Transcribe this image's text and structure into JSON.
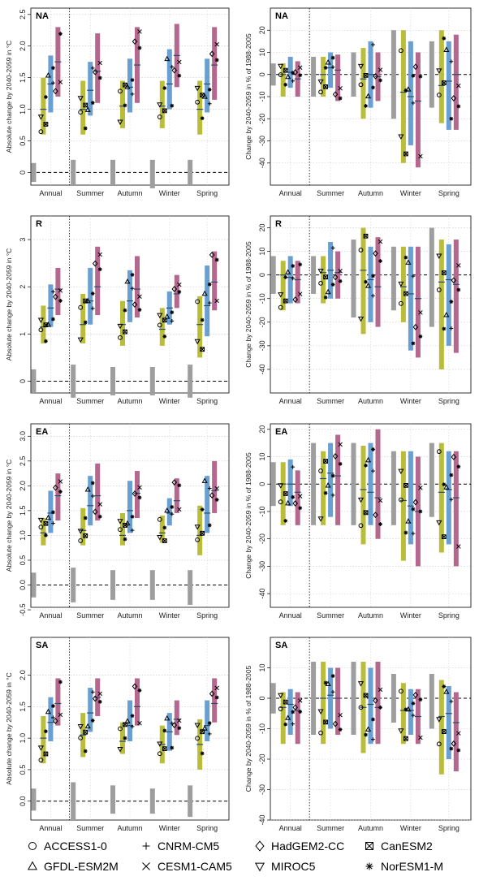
{
  "models": [
    "ACCESS1-0",
    "CNRM-CM5",
    "HadGEM2-CC",
    "CanESM2",
    "GFDL-ESM2M",
    "CESM1-CAM5",
    "MIROC5",
    "NorESM1-M"
  ],
  "model_symbols": [
    "circle",
    "plus",
    "diamond",
    "boxed-x",
    "triangle",
    "x",
    "triangle-down",
    "asterisk"
  ],
  "seasons": [
    "Annual",
    "Summer",
    "Autumn",
    "Winter",
    "Spring"
  ],
  "scenario_colors": [
    "#b9bd3a",
    "#6a9fd2",
    "#b5678d"
  ],
  "reference_color": "#9e9e9e",
  "ylabels": {
    "temp": "Absolute change by 2040-2059 in °C",
    "precip": "Change by 2040-2059 in % of 1988-2005"
  },
  "chart_data": [
    {
      "type": "box",
      "region": "NA",
      "variable": "temperature",
      "ylim": [
        -0.2,
        2.6
      ],
      "yticks": [
        0,
        0.5,
        1,
        1.5,
        2,
        2.5
      ],
      "ytick_labels": [
        "0",
        "0.5",
        "1.0",
        "1.5",
        "2.0",
        "2.5"
      ],
      "categories": [
        "Annual",
        "Summer",
        "Autumn",
        "Winter",
        "Spring"
      ],
      "reference": [
        [
          -0.15,
          0.15
        ],
        [
          -0.2,
          0.2
        ],
        [
          -0.2,
          0.2
        ],
        [
          -0.25,
          0.2
        ],
        [
          -0.2,
          0.2
        ]
      ],
      "series": [
        [
          [
            0.6,
            1.5,
            1.0
          ],
          [
            0.6,
            1.45,
            1.0
          ],
          [
            0.7,
            1.45,
            1.05
          ],
          [
            0.7,
            1.45,
            1.05
          ],
          [
            0.6,
            1.45,
            1.0
          ]
        ],
        [
          [
            0.95,
            1.85,
            1.4
          ],
          [
            0.9,
            1.75,
            1.3
          ],
          [
            0.95,
            1.8,
            1.35
          ],
          [
            1.0,
            1.95,
            1.4
          ],
          [
            0.95,
            1.8,
            1.4
          ]
        ],
        [
          [
            1.2,
            2.3,
            1.75
          ],
          [
            1.1,
            2.2,
            1.6
          ],
          [
            1.1,
            2.3,
            1.7
          ],
          [
            1.35,
            2.35,
            1.85
          ],
          [
            1.15,
            2.3,
            1.7
          ]
        ]
      ]
    },
    {
      "type": "box",
      "region": "NA",
      "variable": "precipitation",
      "ylim": [
        -50,
        30
      ],
      "yticks": [
        -40,
        -30,
        -20,
        -10,
        0,
        10,
        20
      ],
      "ytick_labels": [
        "-40",
        "-30",
        "-20",
        "-10",
        "0",
        "10",
        "20"
      ],
      "categories": [
        "Annual",
        "Summer",
        "Autumn",
        "Winter",
        "Spring"
      ],
      "reference": [
        [
          -5,
          5
        ],
        [
          -10,
          8
        ],
        [
          -10,
          10
        ],
        [
          -20,
          20
        ],
        [
          -15,
          15
        ]
      ],
      "series": [
        [
          [
            -10,
            5,
            0
          ],
          [
            -10,
            8,
            0
          ],
          [
            -20,
            12,
            -2
          ],
          [
            -40,
            20,
            -8
          ],
          [
            -22,
            20,
            -5
          ]
        ],
        [
          [
            -6,
            8,
            1
          ],
          [
            -6,
            10,
            3
          ],
          [
            -15,
            15,
            0
          ],
          [
            -32,
            15,
            -10
          ],
          [
            -25,
            15,
            -3
          ]
        ],
        [
          [
            -10,
            6,
            -2
          ],
          [
            -12,
            9,
            2
          ],
          [
            -12,
            10,
            -1
          ],
          [
            -42,
            10,
            -12
          ],
          [
            -25,
            18,
            0
          ]
        ]
      ]
    },
    {
      "type": "box",
      "region": "R",
      "variable": "temperature",
      "ylim": [
        -0.25,
        3.5
      ],
      "yticks": [
        0,
        1,
        2,
        3
      ],
      "ytick_labels": [
        "0",
        "1",
        "2",
        "3"
      ],
      "categories": [
        "Annual",
        "Summer",
        "Autumn",
        "Winter",
        "Spring"
      ],
      "reference": [
        [
          -0.25,
          0.25
        ],
        [
          -0.35,
          0.35
        ],
        [
          -0.3,
          0.3
        ],
        [
          -0.3,
          0.3
        ],
        [
          -0.35,
          0.35
        ]
      ],
      "series": [
        [
          [
            0.8,
            1.6,
            1.15
          ],
          [
            0.8,
            1.85,
            1.2
          ],
          [
            0.75,
            1.7,
            1.2
          ],
          [
            0.75,
            1.55,
            1.1
          ],
          [
            0.5,
            1.8,
            1.2
          ]
        ],
        [
          [
            1.15,
            2.05,
            1.55
          ],
          [
            1.2,
            2.4,
            1.7
          ],
          [
            1.25,
            2.35,
            1.7
          ],
          [
            1.2,
            1.9,
            1.55
          ],
          [
            0.95,
            2.45,
            1.6
          ]
        ],
        [
          [
            1.4,
            2.4,
            1.95
          ],
          [
            1.4,
            2.85,
            2.0
          ],
          [
            1.35,
            2.65,
            1.95
          ],
          [
            1.55,
            2.25,
            1.85
          ],
          [
            1.5,
            2.75,
            2.1
          ]
        ]
      ]
    },
    {
      "type": "box",
      "region": "R",
      "variable": "precipitation",
      "ylim": [
        -50,
        25
      ],
      "yticks": [
        -40,
        -30,
        -20,
        -10,
        0,
        10,
        20
      ],
      "ytick_labels": [
        "-40",
        "-30",
        "-20",
        "-10",
        "0",
        "10",
        "20"
      ],
      "categories": [
        "Annual",
        "Summer",
        "Autumn",
        "Winter",
        "Spring"
      ],
      "reference": [
        [
          -8,
          8
        ],
        [
          -8,
          8
        ],
        [
          -18,
          15
        ],
        [
          -15,
          12
        ],
        [
          -22,
          20
        ]
      ],
      "series": [
        [
          [
            -15,
            6,
            0
          ],
          [
            -12,
            8,
            1
          ],
          [
            -25,
            20,
            2
          ],
          [
            -20,
            12,
            -5
          ],
          [
            -40,
            15,
            -3
          ]
        ],
        [
          [
            -12,
            8,
            -1
          ],
          [
            -10,
            14,
            2
          ],
          [
            -20,
            12,
            -2
          ],
          [
            -32,
            12,
            -8
          ],
          [
            -30,
            13,
            -2
          ]
        ],
        [
          [
            -12,
            6,
            -2
          ],
          [
            -10,
            10,
            1
          ],
          [
            -22,
            16,
            -5
          ],
          [
            -35,
            12,
            -10
          ],
          [
            -33,
            15,
            -4
          ]
        ]
      ]
    },
    {
      "type": "box",
      "region": "EA",
      "variable": "temperature",
      "ylim": [
        -0.45,
        3.25
      ],
      "yticks": [
        -0.5,
        0,
        0.5,
        1,
        1.5,
        2,
        2.5,
        3
      ],
      "ytick_labels": [
        "-0.5",
        "0.0",
        "0.5",
        "1.0",
        "1.5",
        "2.0",
        "2.5",
        "3.0"
      ],
      "categories": [
        "Annual",
        "Summer",
        "Autumn",
        "Winter",
        "Spring"
      ],
      "reference": [
        [
          -0.25,
          0.25
        ],
        [
          -0.35,
          0.35
        ],
        [
          -0.3,
          0.3
        ],
        [
          -0.3,
          0.3
        ],
        [
          -0.4,
          0.3
        ]
      ],
      "series": [
        [
          [
            0.8,
            1.35,
            1.05
          ],
          [
            0.8,
            1.55,
            1.1
          ],
          [
            0.8,
            1.45,
            1.0
          ],
          [
            0.85,
            1.4,
            1.05
          ],
          [
            0.6,
            1.6,
            1.0
          ]
        ],
        [
          [
            1.05,
            1.9,
            1.45
          ],
          [
            1.2,
            2.2,
            1.6
          ],
          [
            1.05,
            2.1,
            1.5
          ],
          [
            1.2,
            1.75,
            1.45
          ],
          [
            1.05,
            2.2,
            1.45
          ]
        ],
        [
          [
            1.3,
            2.25,
            1.8
          ],
          [
            1.3,
            2.45,
            1.8
          ],
          [
            1.35,
            2.3,
            1.85
          ],
          [
            1.45,
            2.15,
            1.7
          ],
          [
            1.45,
            2.5,
            1.9
          ]
        ]
      ]
    },
    {
      "type": "box",
      "region": "EA",
      "variable": "precipitation",
      "ylim": [
        -45,
        22
      ],
      "yticks": [
        -40,
        -30,
        -20,
        -10,
        0,
        10,
        20
      ],
      "ytick_labels": [
        "-40",
        "-30",
        "-20",
        "-10",
        "0",
        "10",
        "20"
      ],
      "categories": [
        "Annual",
        "Summer",
        "Autumn",
        "Winter",
        "Spring"
      ],
      "reference": [
        [
          -8,
          8
        ],
        [
          -15,
          15
        ],
        [
          -15,
          15
        ],
        [
          -15,
          12
        ],
        [
          -12,
          15
        ]
      ],
      "series": [
        [
          [
            -15,
            8,
            0
          ],
          [
            -15,
            12,
            2
          ],
          [
            -22,
            14,
            -2
          ],
          [
            -28,
            12,
            -6
          ],
          [
            -25,
            15,
            -3
          ]
        ],
        [
          [
            -8,
            9,
            0
          ],
          [
            -12,
            15,
            4
          ],
          [
            -15,
            15,
            -3
          ],
          [
            -22,
            12,
            -8
          ],
          [
            -22,
            12,
            -2
          ]
        ],
        [
          [
            -15,
            5,
            -3
          ],
          [
            -15,
            18,
            3
          ],
          [
            -20,
            20,
            -5
          ],
          [
            -30,
            10,
            -10
          ],
          [
            -30,
            12,
            -5
          ]
        ]
      ]
    },
    {
      "type": "box",
      "region": "SA",
      "variable": "temperature",
      "ylim": [
        -0.3,
        2.6
      ],
      "yticks": [
        0,
        0.5,
        1,
        1.5,
        2
      ],
      "ytick_labels": [
        "0.0",
        "0.5",
        "1.0",
        "1.5",
        "2.0"
      ],
      "categories": [
        "Annual",
        "Summer",
        "Autumn",
        "Winter",
        "Spring"
      ],
      "reference": [
        [
          -0.15,
          0.2
        ],
        [
          -0.3,
          0.3
        ],
        [
          -0.2,
          0.25
        ],
        [
          -0.2,
          0.2
        ],
        [
          -0.25,
          0.25
        ]
      ],
      "series": [
        [
          [
            0.6,
            1.35,
            1.0
          ],
          [
            0.7,
            1.4,
            1.05
          ],
          [
            0.75,
            1.25,
            0.95
          ],
          [
            0.6,
            1.2,
            0.9
          ],
          [
            0.5,
            1.3,
            0.9
          ]
        ],
        [
          [
            0.95,
            1.65,
            1.25
          ],
          [
            1.1,
            1.8,
            1.4
          ],
          [
            0.95,
            1.6,
            1.2
          ],
          [
            0.8,
            1.4,
            1.1
          ],
          [
            0.95,
            1.6,
            1.2
          ]
        ],
        [
          [
            1.2,
            1.95,
            1.55
          ],
          [
            1.35,
            1.95,
            1.65
          ],
          [
            1.2,
            1.95,
            1.5
          ],
          [
            1.05,
            1.6,
            1.3
          ],
          [
            1.25,
            1.95,
            1.55
          ]
        ]
      ]
    },
    {
      "type": "box",
      "region": "SA",
      "variable": "precipitation",
      "ylim": [
        -40,
        20
      ],
      "yticks": [
        -40,
        -30,
        -20,
        -10,
        0,
        10
      ],
      "ytick_labels": [
        "-40",
        "-30",
        "-20",
        "-10",
        "0",
        "10"
      ],
      "categories": [
        "Annual",
        "Summer",
        "Autumn",
        "Winter",
        "Spring"
      ],
      "reference": [
        [
          -5,
          5
        ],
        [
          -12,
          12
        ],
        [
          -12,
          12
        ],
        [
          -8,
          8
        ],
        [
          -10,
          8
        ]
      ],
      "series": [
        [
          [
            -15,
            2,
            -3
          ],
          [
            -15,
            12,
            0
          ],
          [
            -18,
            12,
            -3
          ],
          [
            -15,
            5,
            -4
          ],
          [
            -25,
            6,
            -6
          ]
        ],
        [
          [
            -12,
            3,
            -2
          ],
          [
            -10,
            10,
            1
          ],
          [
            -15,
            10,
            -2
          ],
          [
            -12,
            3,
            -4
          ],
          [
            -20,
            4,
            -5
          ]
        ],
        [
          [
            -15,
            2,
            -4
          ],
          [
            -12,
            10,
            0
          ],
          [
            -15,
            12,
            -3
          ],
          [
            -15,
            3,
            -6
          ],
          [
            -24,
            2,
            -8
          ]
        ]
      ]
    }
  ]
}
